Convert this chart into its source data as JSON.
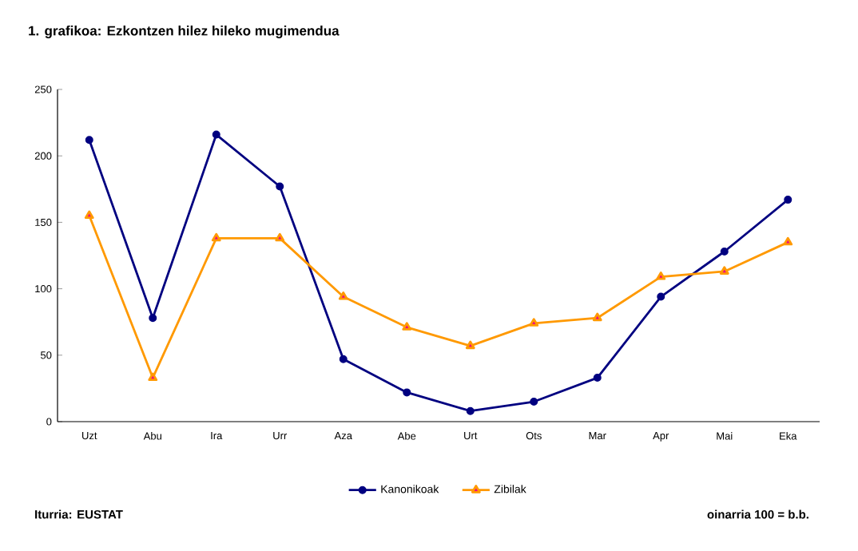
{
  "chart_data": {
    "type": "line",
    "title": "1. grafikoa: Ezkontzen hilez hileko mugimendua",
    "categories": [
      "Uzt",
      "Abu",
      "Ira",
      "Urr",
      "Aza",
      "Abe",
      "Urt",
      "Ots",
      "Mar",
      "Apr",
      "Mai",
      "Eka"
    ],
    "series": [
      {
        "name": "Kanonikoak",
        "color": "#000080",
        "marker": "circle",
        "values": [
          212,
          78,
          216,
          177,
          47,
          22,
          8,
          15,
          33,
          94,
          128,
          167
        ]
      },
      {
        "name": "Zibilak",
        "color": "#ff9900",
        "marker": "triangle",
        "values": [
          155,
          33,
          138,
          138,
          94,
          71,
          57,
          74,
          78,
          109,
          113,
          135
        ]
      }
    ],
    "ylim": [
      0,
      250
    ],
    "yticks": [
      0,
      50,
      100,
      150,
      200,
      250
    ],
    "grid": false,
    "legend": "bottom",
    "line_style": "solid",
    "annotations": [
      "Iturria: EUSTAT",
      "oinarria 100 = b.b."
    ]
  }
}
